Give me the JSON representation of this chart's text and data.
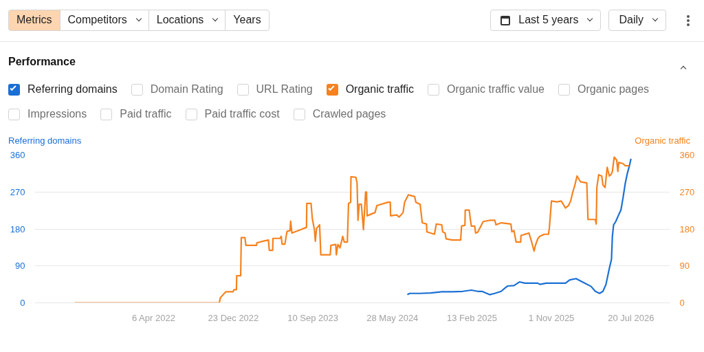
{
  "chart_data": {
    "type": "line",
    "title": "Performance",
    "ylabel": "Referring domains",
    "y2label": "Organic traffic",
    "annotations": [
      "Metrics",
      "Competitors",
      "Locations",
      "Years",
      "Last 5 years",
      "Daily",
      "Domain Rating",
      "URL Rating",
      "Organic traffic value",
      "Organic pages",
      "Impressions",
      "Paid traffic",
      "Paid traffic cost",
      "Crawled pages"
    ],
    "legend": "top",
    "grid": "y",
    "xlim": [
      "2021-03-11",
      "2026-11-25"
    ],
    "xticks": [
      {
        "value": "2022-04-06",
        "label": "6 Apr 2022"
      },
      {
        "value": "2022-12-23",
        "label": "23 Dec 2022"
      },
      {
        "value": "2023-09-10",
        "label": "10 Sep 2023"
      },
      {
        "value": "2024-05-28",
        "label": "28 May 2024"
      },
      {
        "value": "2025-02-13",
        "label": "13 Feb 2025"
      },
      {
        "value": "2025-11-01",
        "label": "1 Nov 2025"
      },
      {
        "value": "2026-07-20",
        "label": "20 Jul 2026"
      }
    ],
    "ylim": [
      0,
      360
    ],
    "yticks": [
      0,
      90,
      180,
      270,
      360
    ],
    "y2lim": [
      0,
      360
    ],
    "y2ticks": [
      0,
      90,
      180,
      270,
      360
    ],
    "series": [
      {
        "name": "Referring domains",
        "color": "#1a6fd4",
        "axis": "y",
        "x": [
          "2024-07-16",
          "2024-07-24",
          "2024-08-27",
          "2024-10-01",
          "2024-11-06",
          "2024-12-11",
          "2025-01-14",
          "2025-02-11",
          "2025-03-04",
          "2025-03-18",
          "2025-04-12",
          "2025-04-29",
          "2025-05-20",
          "2025-06-03",
          "2025-06-10",
          "2025-07-01",
          "2025-07-19",
          "2025-08-06",
          "2025-09-17",
          "2025-09-24",
          "2025-10-15",
          "2025-12-17",
          "2025-12-31",
          "2026-01-21",
          "2026-01-28",
          "2026-02-18",
          "2026-03-11",
          "2026-03-25",
          "2026-04-08",
          "2026-04-19",
          "2026-04-29",
          "2026-05-10",
          "2026-05-17",
          "2026-05-20",
          "2026-05-24",
          "2026-05-31",
          "2026-06-10",
          "2026-06-17",
          "2026-06-24",
          "2026-07-01",
          "2026-07-08",
          "2026-07-15",
          "2026-07-20"
        ],
        "values": [
          20,
          23,
          23,
          24,
          27,
          27,
          28,
          31,
          28,
          28,
          20,
          23,
          28,
          37,
          41,
          42,
          51,
          48,
          48,
          45,
          48,
          48,
          56,
          59,
          56,
          48,
          40,
          28,
          23,
          28,
          45,
          84,
          106,
          162,
          190,
          198,
          215,
          226,
          256,
          290,
          315,
          334,
          351
        ]
      },
      {
        "name": "Organic traffic",
        "color": "#f5821f",
        "axis": "y2",
        "x": [
          "2021-07-20",
          "2022-11-07",
          "2022-11-10",
          "2022-11-28",
          "2022-12-22",
          "2022-12-25",
          "2023-01-02",
          "2023-01-03",
          "2023-01-16",
          "2023-01-18",
          "2023-01-30",
          "2023-02-02",
          "2023-03-09",
          "2023-03-10",
          "2023-03-30",
          "2023-04-17",
          "2023-04-20",
          "2023-05-01",
          "2023-05-02",
          "2023-05-25",
          "2023-05-29",
          "2023-06-01",
          "2023-06-10",
          "2023-06-17",
          "2023-06-27",
          "2023-06-29",
          "2023-07-03",
          "2023-07-13",
          "2023-07-31",
          "2023-08-20",
          "2023-08-21",
          "2023-09-04",
          "2023-09-08",
          "2023-09-15",
          "2023-09-18",
          "2023-09-22",
          "2023-10-02",
          "2023-10-06",
          "2023-11-06",
          "2023-11-08",
          "2023-11-24",
          "2023-11-26",
          "2023-12-01",
          "2023-12-08",
          "2023-12-17",
          "2023-12-22",
          "2024-01-01",
          "2024-01-05",
          "2024-01-12",
          "2024-01-13",
          "2024-01-29",
          "2024-02-02",
          "2024-02-05",
          "2024-02-09",
          "2024-02-16",
          "2024-02-23",
          "2024-03-01",
          "2024-03-04",
          "2024-03-06",
          "2024-04-01",
          "2024-04-07",
          "2024-05-14",
          "2024-05-21",
          "2024-05-22",
          "2024-06-11",
          "2024-06-19",
          "2024-07-02",
          "2024-07-07",
          "2024-07-19",
          "2024-08-09",
          "2024-08-13",
          "2024-08-27",
          "2024-09-03",
          "2024-09-17",
          "2024-09-18",
          "2024-10-13",
          "2024-10-19",
          "2024-11-06",
          "2024-11-09",
          "2024-11-17",
          "2024-11-20",
          "2024-12-10",
          "2025-01-07",
          "2025-01-10",
          "2025-01-21",
          "2025-01-22",
          "2025-02-04",
          "2025-02-08",
          "2025-02-11",
          "2025-02-22",
          "2025-02-25",
          "2025-03-04",
          "2025-03-22",
          "2025-04-12",
          "2025-04-29",
          "2025-05-03",
          "2025-05-20",
          "2025-06-21",
          "2025-06-24",
          "2025-07-01",
          "2025-07-08",
          "2025-07-23",
          "2025-07-24",
          "2025-08-19",
          "2025-08-27",
          "2025-09-05",
          "2025-09-09",
          "2025-09-17",
          "2025-09-24",
          "2025-10-08",
          "2025-10-22",
          "2025-10-25",
          "2025-11-01",
          "2025-11-19",
          "2025-12-03",
          "2025-12-17",
          "2025-12-27",
          "2026-01-03",
          "2026-01-10",
          "2026-01-17",
          "2026-01-24",
          "2026-02-04",
          "2026-02-25",
          "2026-03-01",
          "2026-03-25",
          "2026-03-28",
          "2026-03-30",
          "2026-04-05",
          "2026-04-15",
          "2026-04-19",
          "2026-04-26",
          "2026-05-03",
          "2026-05-10",
          "2026-05-17",
          "2026-05-20",
          "2026-05-26",
          "2026-06-03",
          "2026-06-07",
          "2026-06-10",
          "2026-06-24",
          "2026-07-01",
          "2026-07-15"
        ],
        "values": [
          0,
          0,
          12,
          27,
          27,
          32,
          32,
          66,
          66,
          159,
          159,
          140,
          140,
          146,
          150,
          153,
          128,
          128,
          157,
          157,
          162,
          143,
          143,
          174,
          176,
          199,
          170,
          173,
          178,
          184,
          242,
          242,
          206,
          178,
          150,
          181,
          190,
          117,
          117,
          140,
          142,
          117,
          142,
          134,
          162,
          148,
          148,
          242,
          245,
          307,
          306,
          292,
          201,
          240,
          240,
          178,
          270,
          270,
          212,
          220,
          237,
          245,
          245,
          212,
          214,
          209,
          220,
          245,
          263,
          259,
          245,
          240,
          195,
          192,
          173,
          167,
          192,
          190,
          173,
          170,
          156,
          153,
          153,
          187,
          189,
          226,
          226,
          203,
          187,
          187,
          170,
          172,
          198,
          201,
          201,
          190,
          195,
          192,
          173,
          176,
          148,
          148,
          164,
          170,
          151,
          126,
          139,
          156,
          162,
          167,
          167,
          181,
          248,
          246,
          248,
          231,
          237,
          248,
          270,
          287,
          309,
          295,
          292,
          203,
          203,
          192,
          281,
          312,
          309,
          287,
          281,
          330,
          309,
          314,
          320,
          355,
          348,
          320,
          342,
          339,
          334,
          334
        ]
      }
    ]
  }
}
